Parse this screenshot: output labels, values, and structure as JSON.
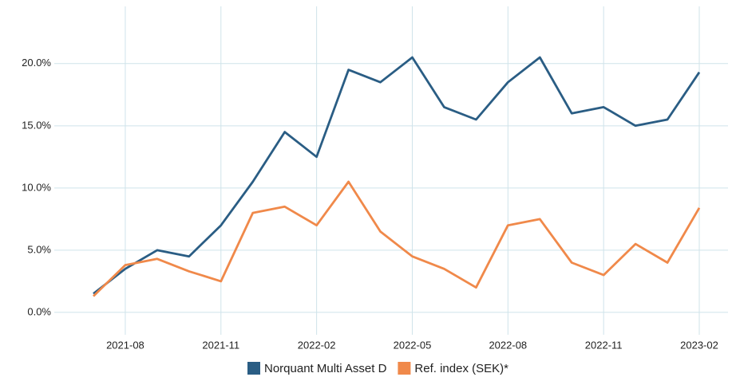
{
  "chart_data": {
    "type": "line",
    "x": [
      "2021-07",
      "2021-08",
      "2021-09",
      "2021-10",
      "2021-11",
      "2021-12",
      "2022-01",
      "2022-02",
      "2022-03",
      "2022-04",
      "2022-05",
      "2022-06",
      "2022-07",
      "2022-08",
      "2022-09",
      "2022-10",
      "2022-11",
      "2022-12",
      "2023-01",
      "2023-02"
    ],
    "series": [
      {
        "name": "Norquant Multi Asset D",
        "color": "#2a5d84",
        "values": [
          1.5,
          3.5,
          5.0,
          4.5,
          7.0,
          10.5,
          14.5,
          12.5,
          19.5,
          18.5,
          20.5,
          16.5,
          15.5,
          18.5,
          20.5,
          16.0,
          16.5,
          15.0,
          15.5,
          19.3
        ]
      },
      {
        "name": "Ref. index (SEK)*",
        "color": "#f0894a",
        "values": [
          1.3,
          3.8,
          4.3,
          3.3,
          2.5,
          8.0,
          8.5,
          7.0,
          10.5,
          6.5,
          4.5,
          3.5,
          2.0,
          7.0,
          7.5,
          4.0,
          3.0,
          5.5,
          4.0,
          8.4
        ]
      }
    ],
    "xticks": [
      "2021-08",
      "2021-11",
      "2022-02",
      "2022-05",
      "2022-08",
      "2022-11",
      "2023-02"
    ],
    "ylim": [
      -1.8,
      24.6
    ],
    "yticks": [
      {
        "value": 0,
        "label": "0.0%"
      },
      {
        "value": 5,
        "label": "5.0%"
      },
      {
        "value": 10,
        "label": "10.0%"
      },
      {
        "value": 15,
        "label": "15.0%"
      },
      {
        "value": 20,
        "label": "20.0%"
      }
    ],
    "grid": true,
    "legend": "bottom"
  }
}
